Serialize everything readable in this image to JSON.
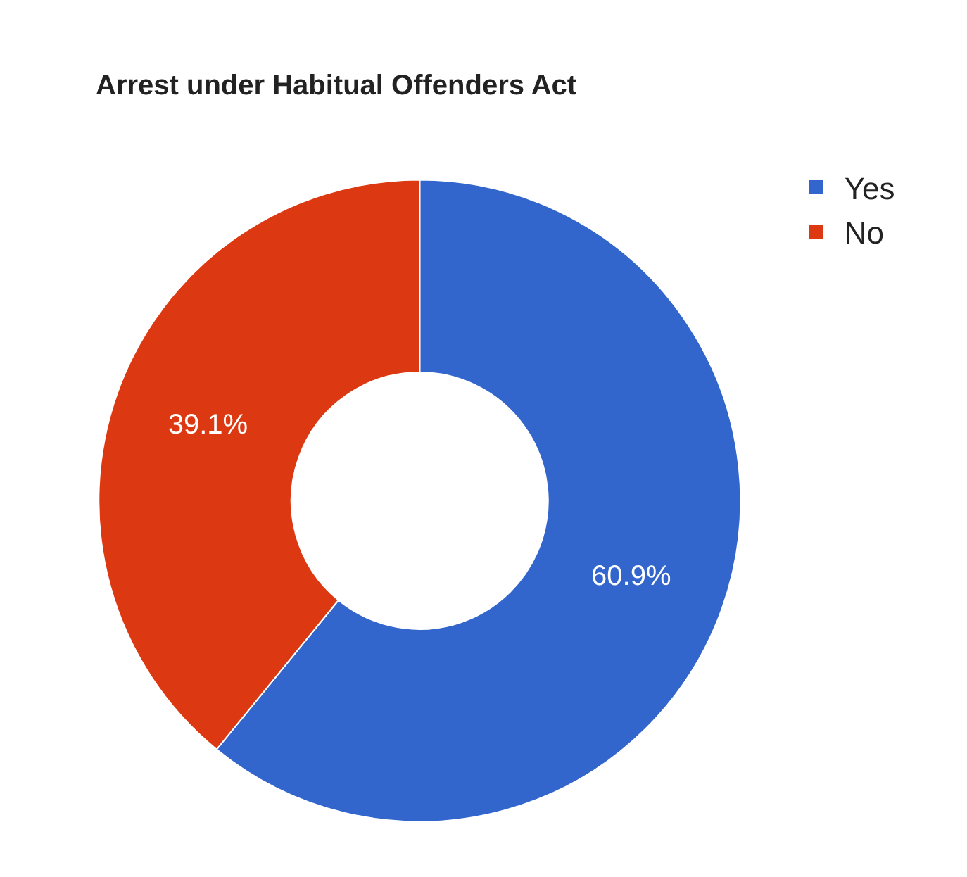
{
  "chart_data": {
    "type": "donut",
    "title": "Arrest under Habitual Offenders Act",
    "categories": [
      "Yes",
      "No"
    ],
    "values": [
      60.9,
      39.1
    ],
    "colors": [
      "#3366cc",
      "#dc3912"
    ],
    "value_labels": [
      "60.9%",
      "39.1%"
    ],
    "legend": "top right"
  }
}
